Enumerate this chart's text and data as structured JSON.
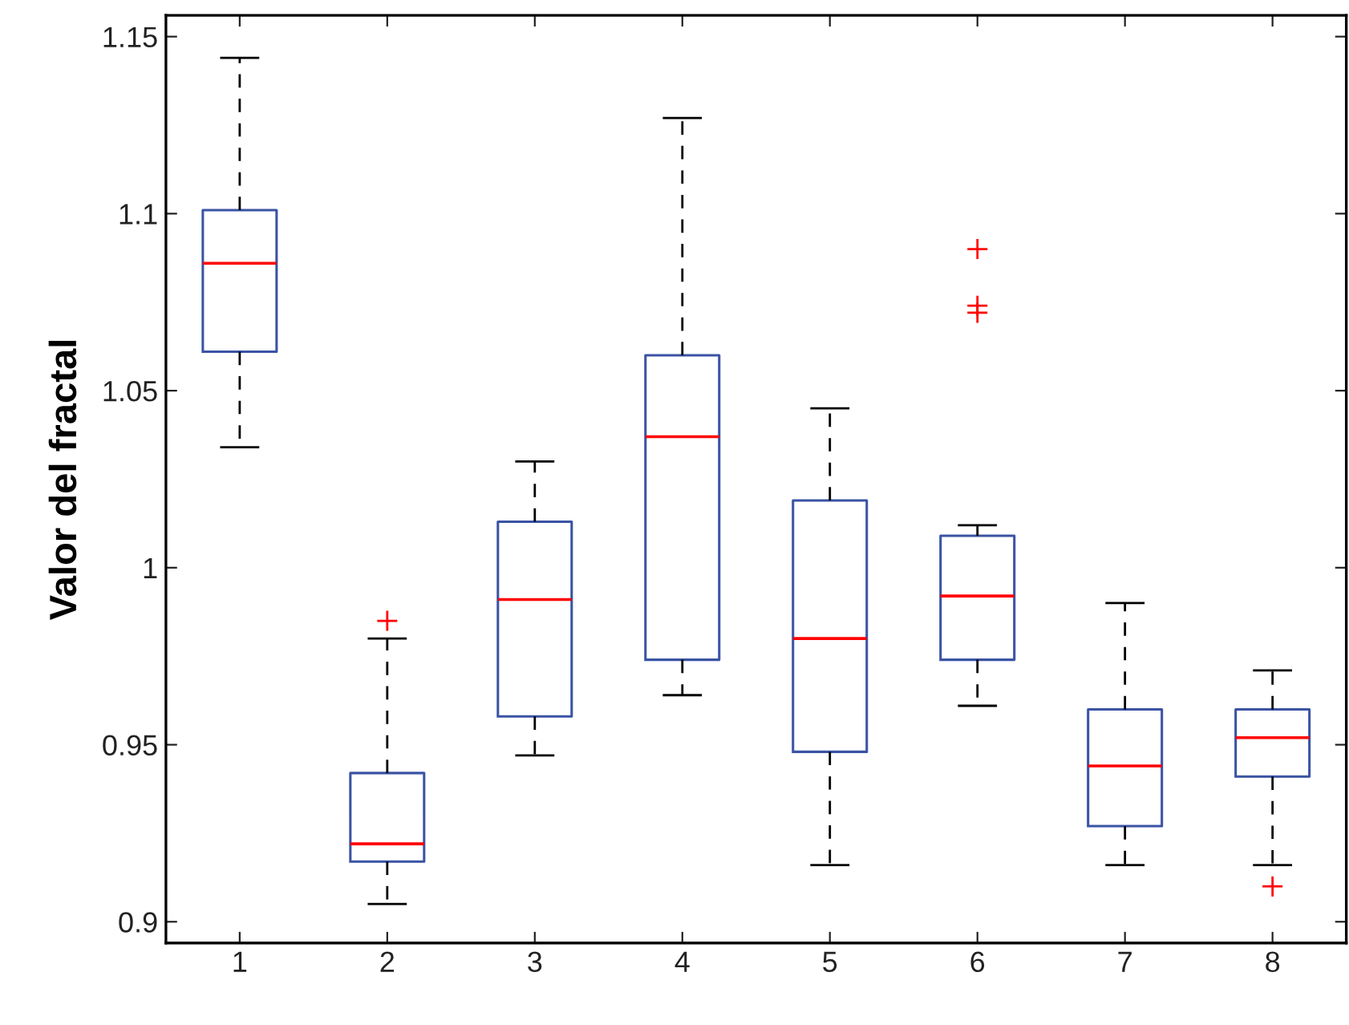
{
  "chart_data": {
    "type": "box",
    "ylabel": "Valor del fractal",
    "categories": [
      "1",
      "2",
      "3",
      "4",
      "5",
      "6",
      "7",
      "8"
    ],
    "ylim": [
      0.894,
      1.156
    ],
    "yticks": [
      0.9,
      0.95,
      1,
      1.05,
      1.1,
      1.15
    ],
    "series": [
      {
        "color": "#3a53a4",
        "boxes": [
          {
            "low": 1.034,
            "q1": 1.061,
            "median": 1.086,
            "q3": 1.101,
            "high": 1.144
          },
          {
            "low": 0.905,
            "q1": 0.917,
            "median": 0.922,
            "q3": 0.942,
            "high": 0.98,
            "outliers": [
              0.985
            ]
          },
          {
            "low": 0.947,
            "q1": 0.958,
            "median": 0.991,
            "q3": 1.013,
            "high": 1.03
          },
          {
            "low": 0.964,
            "q1": 0.974,
            "median": 1.037,
            "q3": 1.06,
            "high": 1.127
          },
          {
            "low": 0.916,
            "q1": 0.948,
            "median": 0.98,
            "q3": 1.019,
            "high": 1.045
          },
          {
            "low": 0.961,
            "q1": 0.974,
            "median": 0.992,
            "q3": 1.009,
            "high": 1.012,
            "outliers": [
              1.09,
              1.074,
              1.072
            ]
          },
          {
            "low": 0.916,
            "q1": 0.927,
            "median": 0.944,
            "q3": 0.96,
            "high": 0.99
          },
          {
            "low": 0.916,
            "q1": 0.941,
            "median": 0.952,
            "q3": 0.96,
            "high": 0.971,
            "outliers": [
              0.91
            ]
          }
        ]
      }
    ]
  }
}
